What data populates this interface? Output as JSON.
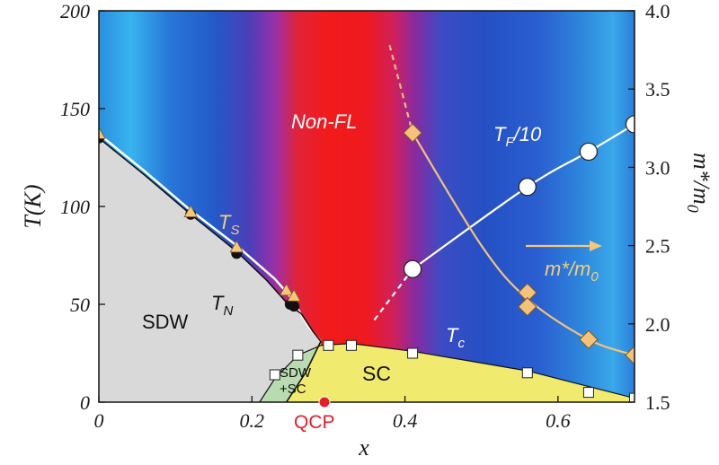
{
  "chart_data": {
    "type": "scatter",
    "xlabel": "x",
    "ylabel": "T(K)",
    "y2label": "m*/m₀",
    "xlim": [
      0,
      0.7
    ],
    "ylim": [
      0,
      200
    ],
    "y2lim": [
      1.5,
      4.0
    ],
    "x_ticks": [
      "0",
      "0.2",
      "0.4",
      "0.6"
    ],
    "x_tick_values": [
      0,
      0.2,
      0.4,
      0.6
    ],
    "y_ticks": [
      "0",
      "50",
      "100",
      "150",
      "200"
    ],
    "y_tick_values": [
      0,
      50,
      100,
      150,
      200
    ],
    "y2_ticks": [
      "1.5",
      "2.0",
      "2.5",
      "3.0",
      "3.5",
      "4.0"
    ],
    "y2_tick_values": [
      1.5,
      2.0,
      2.5,
      3.0,
      3.5,
      4.0
    ],
    "background": "color map: blue (low) → red (high); red band ≈ x 0.27–0.40",
    "regions": [
      {
        "label": "SDW",
        "color": "#d9d9d9"
      },
      {
        "label": "SC",
        "color": "#f0ea6e"
      },
      {
        "label": "SDW+SC",
        "line1": "SDW",
        "line2": "+SC",
        "color": "#b8dcb0"
      }
    ],
    "series": [
      {
        "name": "T_N",
        "marker": "filled-circle",
        "color": "#111111",
        "x": [
          0.0,
          0.12,
          0.18,
          0.25,
          0.255
        ],
        "y": [
          135,
          96,
          76,
          50,
          49
        ]
      },
      {
        "name": "T_S",
        "marker": "triangle",
        "color": "#f5c77a",
        "x": [
          0.0,
          0.12,
          0.18,
          0.245,
          0.255
        ],
        "y": [
          137,
          97,
          79,
          57,
          54
        ]
      },
      {
        "name": "T_c",
        "marker": "open-square",
        "color": "#ffffff",
        "x": [
          0.23,
          0.26,
          0.3,
          0.33,
          0.41,
          0.56,
          0.64,
          0.7
        ],
        "y": [
          14,
          24,
          29,
          29,
          25,
          15,
          5,
          2
        ]
      },
      {
        "name": "T_F/10",
        "marker": "open-circle",
        "color": "#ffffff",
        "x": [
          0.41,
          0.56,
          0.64,
          0.7
        ],
        "y": [
          68,
          110,
          128,
          142
        ]
      },
      {
        "name": "m*/m_0",
        "marker": "diamond",
        "color": "#f5c27a",
        "axis": "right",
        "x": [
          0.41,
          0.56,
          0.56,
          0.64,
          0.7
        ],
        "y": [
          3.22,
          2.2,
          2.11,
          1.9,
          1.8
        ]
      }
    ],
    "annotations": {
      "nonfl": "Non-FL",
      "sdw": "SDW",
      "sc": "SC",
      "tn_main": "T",
      "tn_sub": "N",
      "ts_main": "T",
      "ts_sub": "S",
      "tc_main": "T",
      "tc_sub": "c",
      "tf_main": "T",
      "tf_sub": "F",
      "tf_tail": "/10",
      "mstar_main": "m*/m",
      "mstar_sub": "0",
      "qcp": "QCP",
      "y2_main": "m*/m",
      "y2_sub": "0"
    }
  }
}
